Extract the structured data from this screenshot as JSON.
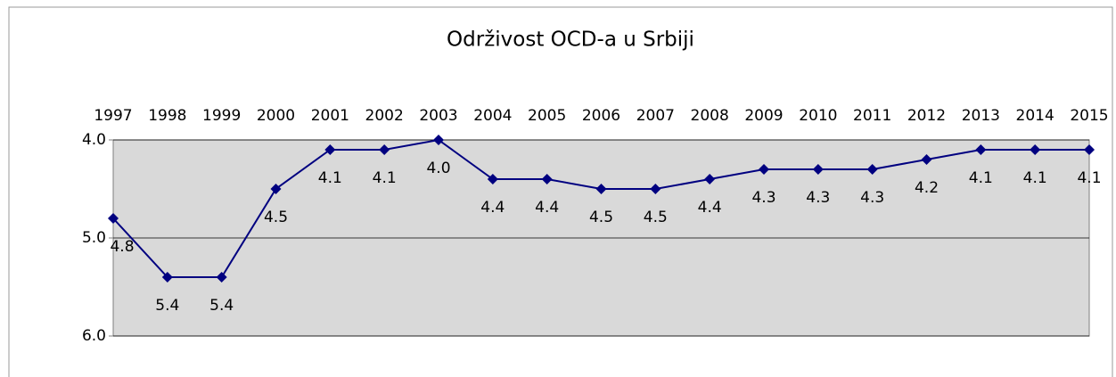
{
  "chart_data": {
    "type": "line",
    "title": "Održivost OCD-a u Srbiji",
    "categories": [
      "1997",
      "1998",
      "1999",
      "2000",
      "2001",
      "2002",
      "2003",
      "2004",
      "2005",
      "2006",
      "2007",
      "2008",
      "2009",
      "2010",
      "2011",
      "2012",
      "2013",
      "2014",
      "2015"
    ],
    "series": [
      {
        "name": "Održivost",
        "color": "#000080",
        "values": [
          4.8,
          5.4,
          5.4,
          4.5,
          4.1,
          4.1,
          4.0,
          4.4,
          4.4,
          4.5,
          4.5,
          4.4,
          4.3,
          4.3,
          4.3,
          4.2,
          4.1,
          4.1,
          4.1
        ],
        "value_labels": [
          "4.8",
          "5.4",
          "5.4",
          "4.5",
          "4.1",
          "4.1",
          "4.0",
          "4.4",
          "4.4",
          "4.5",
          "4.5",
          "4.4",
          "4.3",
          "4.3",
          "4.3",
          "4.2",
          "4.1",
          "4.1",
          "4.1"
        ]
      }
    ],
    "ylim": [
      6,
      4
    ],
    "yticks": [
      {
        "value": 4,
        "label": "4.0"
      },
      {
        "value": 5,
        "label": "5.0"
      },
      {
        "value": 6,
        "label": "6.0"
      }
    ],
    "grid": true,
    "x_axis_position": "top",
    "plot_background": "#d9d9d9"
  }
}
